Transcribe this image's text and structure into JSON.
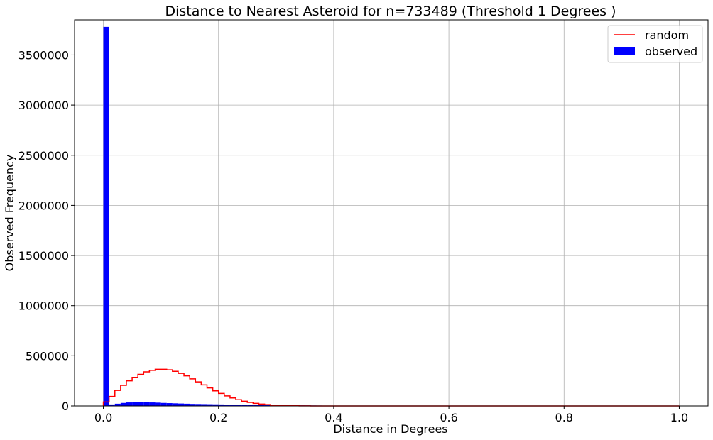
{
  "chart_data": {
    "type": "bar",
    "title": "Distance to Nearest Asteroid for n=733489 (Threshold 1 Degrees )",
    "xlabel": "Distance in Degrees",
    "ylabel": "Observed Frequency",
    "xlim": [
      -0.05,
      1.05
    ],
    "ylim": [
      0,
      3850000
    ],
    "xticks": [
      0.0,
      0.2,
      0.4,
      0.6,
      0.8,
      1.0
    ],
    "xtick_labels": [
      "0.0",
      "0.2",
      "0.4",
      "0.6",
      "0.8",
      "1.0"
    ],
    "yticks": [
      0,
      500000,
      1000000,
      1500000,
      2000000,
      2500000,
      3000000,
      3500000
    ],
    "ytick_labels": [
      "0",
      "500000",
      "1000000",
      "1500000",
      "2000000",
      "2500000",
      "3000000",
      "3500000"
    ],
    "grid": true,
    "legend_position": "top-right",
    "bin_edges": [
      0.0,
      0.01,
      0.02,
      0.03,
      0.04,
      0.05,
      0.06,
      0.07,
      0.08,
      0.09,
      0.1,
      0.11,
      0.12,
      0.13,
      0.14,
      0.15,
      0.16,
      0.17,
      0.18,
      0.19,
      0.2,
      0.21,
      0.22,
      0.23,
      0.24,
      0.25,
      0.26,
      0.27,
      0.28,
      0.29,
      0.3,
      0.31,
      0.32,
      0.33,
      0.34,
      0.35,
      0.36,
      0.37,
      0.38,
      0.39
    ],
    "series": [
      {
        "name": "random",
        "kind": "step",
        "color": "#ff0000",
        "x": [
          0.0,
          0.01,
          0.02,
          0.03,
          0.04,
          0.05,
          0.06,
          0.07,
          0.08,
          0.09,
          0.1,
          0.11,
          0.12,
          0.13,
          0.14,
          0.15,
          0.16,
          0.17,
          0.18,
          0.19,
          0.2,
          0.21,
          0.22,
          0.23,
          0.24,
          0.25,
          0.26,
          0.27,
          0.28,
          0.29,
          0.3,
          0.31,
          0.32,
          0.33,
          0.34,
          0.35,
          0.36,
          0.37,
          0.38,
          0.39,
          0.4,
          0.5,
          0.6,
          0.7,
          0.8,
          0.9,
          1.0
        ],
        "values": [
          40000,
          95000,
          155000,
          205000,
          250000,
          285000,
          315000,
          340000,
          355000,
          365000,
          365000,
          360000,
          345000,
          325000,
          300000,
          270000,
          240000,
          210000,
          180000,
          150000,
          125000,
          100000,
          80000,
          62000,
          47000,
          35000,
          26000,
          19000,
          13000,
          9000,
          6000,
          4000,
          2500,
          1500,
          1000,
          600,
          400,
          250,
          150,
          100,
          50,
          0,
          0,
          0,
          0,
          0,
          0
        ]
      },
      {
        "name": "observed",
        "kind": "hist",
        "color": "#0000ff",
        "values": [
          3780000,
          15000,
          22000,
          30000,
          35000,
          38000,
          38000,
          37000,
          35000,
          33000,
          30000,
          28000,
          26000,
          24000,
          22000,
          20000,
          19000,
          18000,
          17000,
          16000,
          15000,
          14000,
          13000,
          12000,
          11000,
          10000,
          9500,
          9000,
          8500,
          8000,
          7500,
          7000,
          6500,
          6000,
          5500,
          5000,
          4500,
          4000,
          3500
        ]
      }
    ]
  }
}
